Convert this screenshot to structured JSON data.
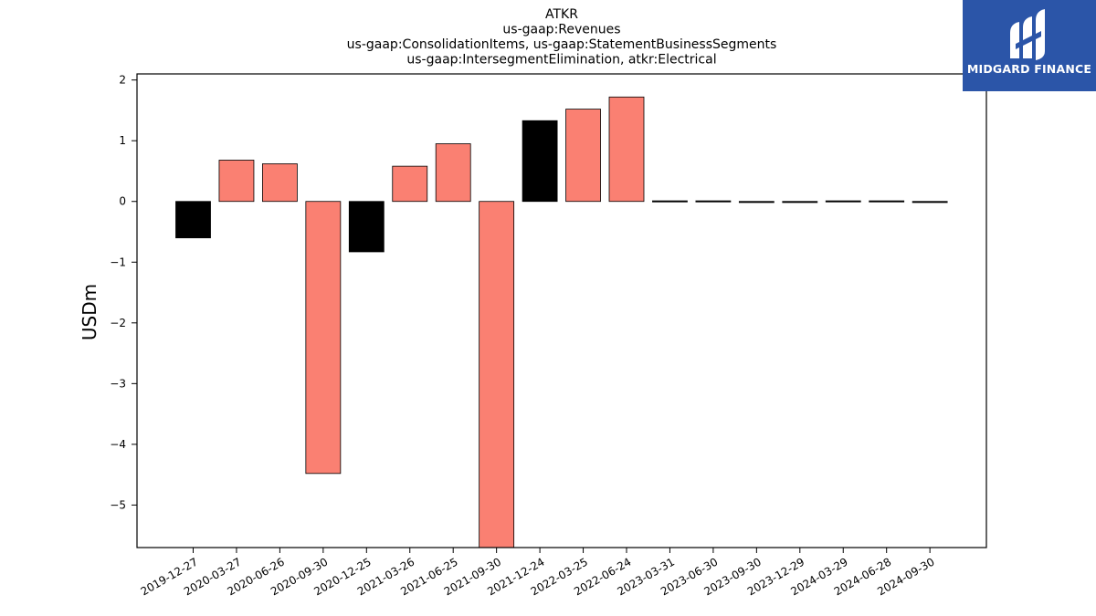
{
  "chart_data": {
    "type": "bar",
    "title_lines": [
      "ATKR",
      "us-gaap:Revenues",
      "us-gaap:ConsolidationItems, us-gaap:StatementBusinessSegments",
      "us-gaap:IntersegmentElimination, atkr:Electrical"
    ],
    "ylabel": "USDm",
    "xlabel": "",
    "ylim": [
      -5.7,
      2.1
    ],
    "yticks": [
      2,
      1,
      0,
      -1,
      -2,
      -3,
      -4,
      -5
    ],
    "ytick_labels": [
      "2",
      "1",
      "0",
      "−1",
      "−2",
      "−3",
      "−4",
      "−5"
    ],
    "categories": [
      "2019-12-27",
      "2020-03-27",
      "2020-06-26",
      "2020-09-30",
      "2020-12-25",
      "2021-03-26",
      "2021-06-25",
      "2021-09-30",
      "2021-12-24",
      "2022-03-25",
      "2022-06-24",
      "2023-03-31",
      "2023-06-30",
      "2023-09-30",
      "2023-12-29",
      "2024-03-29",
      "2024-06-28",
      "2024-09-30"
    ],
    "values": [
      -0.6,
      0.68,
      0.62,
      -4.48,
      -0.83,
      0.58,
      0.95,
      -5.7,
      1.33,
      1.52,
      1.72,
      0.01,
      0.01,
      0.0,
      0.0,
      0.01,
      0.01,
      0.0
    ],
    "bar_colors": [
      "#000000",
      "#fa8072",
      "#fa8072",
      "#fa8072",
      "#000000",
      "#fa8072",
      "#fa8072",
      "#fa8072",
      "#000000",
      "#fa8072",
      "#fa8072",
      "#000000",
      "#000000",
      "#000000",
      "#000000",
      "#000000",
      "#000000",
      "#000000"
    ],
    "grid": false,
    "legend": "none"
  },
  "logo": {
    "text": "MIDGARD FINANCE",
    "background": "#2b55a8"
  }
}
